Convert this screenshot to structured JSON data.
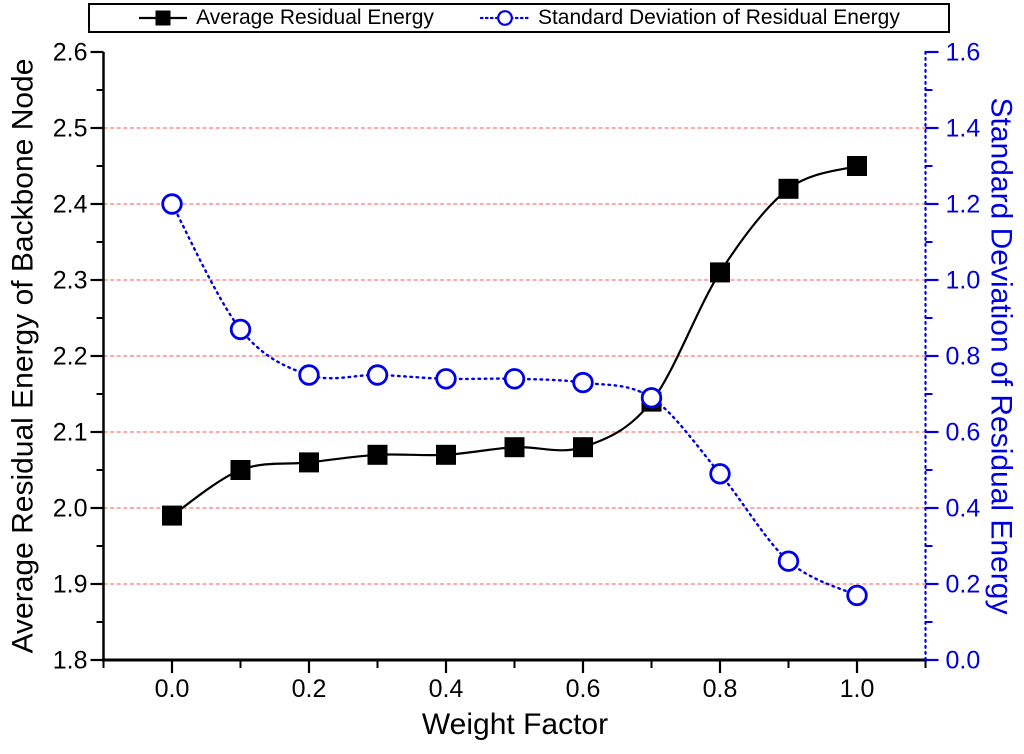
{
  "colors": {
    "series_black": "#000000",
    "series_blue": "#0000e6",
    "blue_text": "#0000dd",
    "grid_red": "#ff8080",
    "background": "#ffffff"
  },
  "legend": {
    "items": [
      {
        "label": "Average Residual Energy",
        "marker": "filled-square",
        "line": "solid",
        "color": "#000000"
      },
      {
        "label": "Standard Deviation of Residual Energy",
        "marker": "open-circle",
        "line": "dotted",
        "color": "#0000e6"
      }
    ]
  },
  "chart_data": {
    "type": "line",
    "x": [
      0.0,
      0.1,
      0.2,
      0.3,
      0.4,
      0.5,
      0.6,
      0.7,
      0.8,
      0.9,
      1.0
    ],
    "series": [
      {
        "name": "Average Residual Energy",
        "yaxis": "left",
        "color": "#000000",
        "marker": "filled-square",
        "line_style": "solid",
        "values": [
          1.99,
          2.05,
          2.06,
          2.07,
          2.07,
          2.08,
          2.08,
          2.14,
          2.31,
          2.42,
          2.45
        ]
      },
      {
        "name": "Standard Deviation of Residual Energy",
        "yaxis": "right",
        "color": "#0000e6",
        "marker": "open-circle",
        "line_style": "dotted",
        "values": [
          1.2,
          0.87,
          0.75,
          0.75,
          0.74,
          0.74,
          0.73,
          0.69,
          0.49,
          0.26,
          0.17
        ]
      }
    ],
    "xlabel": "Weight Factor",
    "ylabel_left": "Average Residual Energy of Backbone Node",
    "ylabel_right": "Standard Deviation of Residual Energy",
    "xlim": [
      -0.1,
      1.1
    ],
    "ylim_left": [
      1.8,
      2.6
    ],
    "ylim_right": [
      0.0,
      1.6
    ],
    "x_major_ticks": [
      0.0,
      0.2,
      0.4,
      0.6,
      0.8,
      1.0
    ],
    "x_minor_ticks": [
      -0.1,
      0.1,
      0.3,
      0.5,
      0.7,
      0.9,
      1.1
    ],
    "left_major_ticks": [
      1.8,
      1.9,
      2.0,
      2.1,
      2.2,
      2.3,
      2.4,
      2.5,
      2.6
    ],
    "left_minor_ticks": [
      1.85,
      1.95,
      2.05,
      2.15,
      2.25,
      2.35,
      2.45,
      2.55
    ],
    "right_major_ticks": [
      0.0,
      0.2,
      0.4,
      0.6,
      0.8,
      1.0,
      1.2,
      1.4,
      1.6
    ],
    "right_minor_ticks": [
      0.1,
      0.3,
      0.5,
      0.7,
      0.9,
      1.1,
      1.3,
      1.5
    ],
    "grid_values_left_axis": [
      1.9,
      2.0,
      2.1,
      2.2,
      2.3,
      2.4,
      2.5
    ],
    "grid_color": "#ff8080",
    "grid_style": "dashed",
    "legend_position": "top"
  }
}
